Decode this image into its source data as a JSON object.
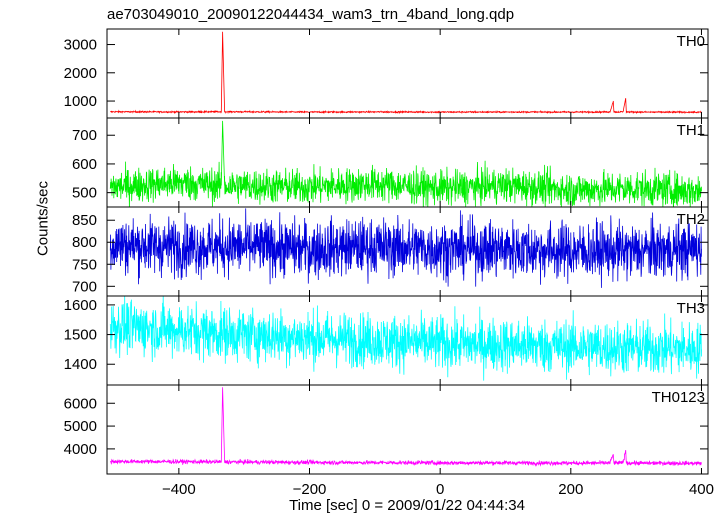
{
  "title": "ae703049010_20090122044434_wam3_trn_4band_long.qdp",
  "ylabel": "Counts/sec",
  "xlabel": "Time [sec] 0 = 2009/01/22 04:44:34",
  "chart_data": [
    {
      "type": "line",
      "name": "TH0",
      "color": "#ff0000",
      "xlim": [
        -510,
        410
      ],
      "ylim": [
        400,
        3550
      ],
      "yticks": [
        1000,
        2000,
        3000
      ],
      "x": [
        -505,
        -400,
        -340,
        -335,
        -333,
        -330,
        -325,
        -200,
        -100,
        0,
        100,
        200,
        260,
        265,
        266,
        270,
        280,
        284,
        285,
        290,
        300,
        400
      ],
      "y": [
        620,
        615,
        620,
        615,
        3450,
        615,
        620,
        610,
        615,
        610,
        612,
        610,
        615,
        1000,
        615,
        612,
        618,
        1100,
        615,
        612,
        610,
        605
      ]
    },
    {
      "type": "line",
      "name": "TH1",
      "color": "#00ee00",
      "xlim": [
        -510,
        410
      ],
      "ylim": [
        450,
        760
      ],
      "yticks": [
        500,
        600,
        700
      ],
      "x": [
        -505,
        -400,
        -335,
        -333,
        -330,
        -200,
        -100,
        0,
        100,
        200,
        300,
        400
      ],
      "y": [
        520,
        535,
        525,
        750,
        525,
        520,
        530,
        515,
        525,
        510,
        515,
        505
      ]
    },
    {
      "type": "line",
      "name": "TH2",
      "color": "#0000dd",
      "xlim": [
        -510,
        410
      ],
      "ylim": [
        678,
        880
      ],
      "yticks": [
        700,
        750,
        800,
        850
      ],
      "x": [
        -505,
        -400,
        -300,
        -200,
        -100,
        0,
        100,
        200,
        300,
        400
      ],
      "y": [
        795,
        790,
        790,
        785,
        790,
        785,
        785,
        780,
        780,
        785
      ]
    },
    {
      "type": "line",
      "name": "TH3",
      "color": "#00ffff",
      "xlim": [
        -510,
        410
      ],
      "ylim": [
        1330,
        1630
      ],
      "yticks": [
        1400,
        1500,
        1600
      ],
      "x": [
        -505,
        -400,
        -300,
        -200,
        -100,
        0,
        100,
        200,
        300,
        400
      ],
      "y": [
        1530,
        1515,
        1500,
        1490,
        1480,
        1470,
        1465,
        1460,
        1455,
        1450
      ]
    },
    {
      "type": "line",
      "name": "TH0123",
      "color": "#ff00ff",
      "xlim": [
        -510,
        410
      ],
      "ylim": [
        2900,
        6800
      ],
      "yticks": [
        4000,
        5000,
        6000
      ],
      "x": [
        -505,
        -400,
        -335,
        -333,
        -330,
        -200,
        -100,
        0,
        100,
        200,
        260,
        265,
        266,
        280,
        284,
        285,
        300,
        400
      ],
      "y": [
        3450,
        3440,
        3430,
        6700,
        3430,
        3410,
        3400,
        3390,
        3390,
        3380,
        3385,
        3750,
        3385,
        3390,
        3950,
        3385,
        3380,
        3370
      ]
    }
  ],
  "xticks": [
    -400,
    -200,
    0,
    200,
    400
  ],
  "xtick_labels": [
    "−400",
    "−200",
    "0",
    "200",
    "400"
  ]
}
